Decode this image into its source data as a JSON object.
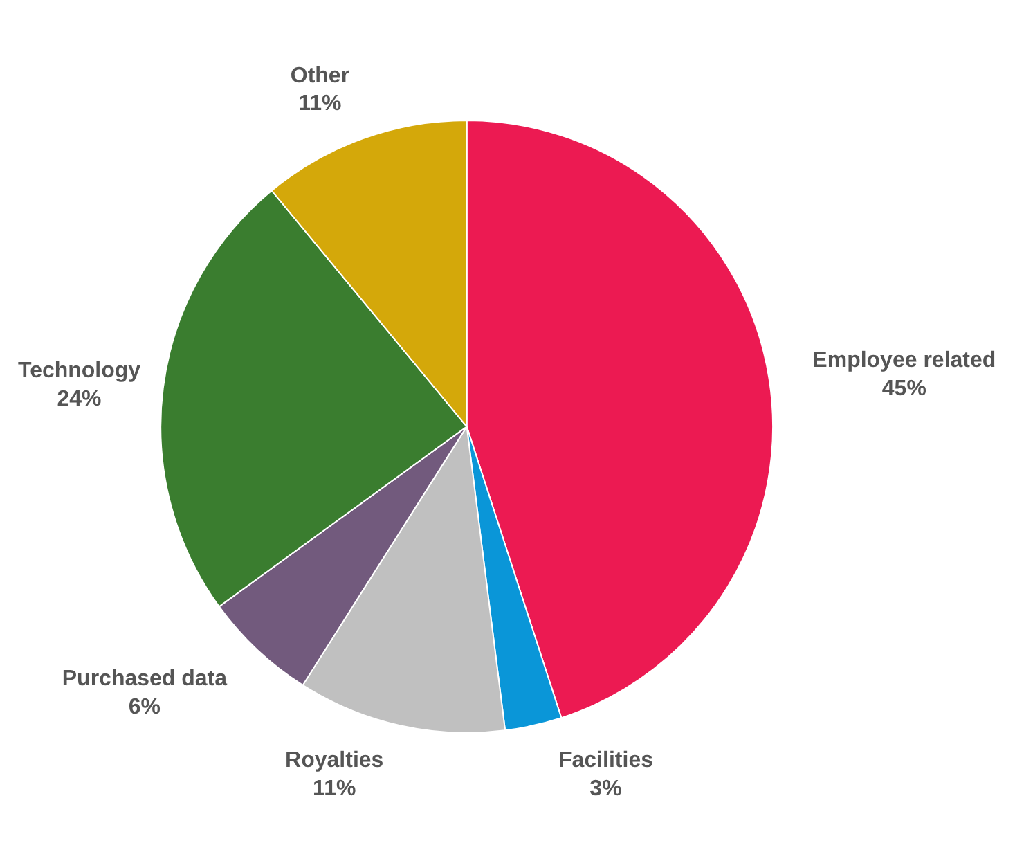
{
  "chart_data": {
    "type": "pie",
    "categories": [
      "Employee related",
      "Facilities",
      "Royalties",
      "Purchased data",
      "Technology",
      "Other"
    ],
    "values": [
      45,
      3,
      11,
      6,
      24,
      11
    ],
    "value_labels": [
      "45%",
      "3%",
      "11%",
      "6%",
      "24%",
      "11%"
    ],
    "colors": [
      "#ec1a52",
      "#0a96d8",
      "#c0c0c0",
      "#725a7d",
      "#3a7d2f",
      "#d4a80a"
    ]
  }
}
